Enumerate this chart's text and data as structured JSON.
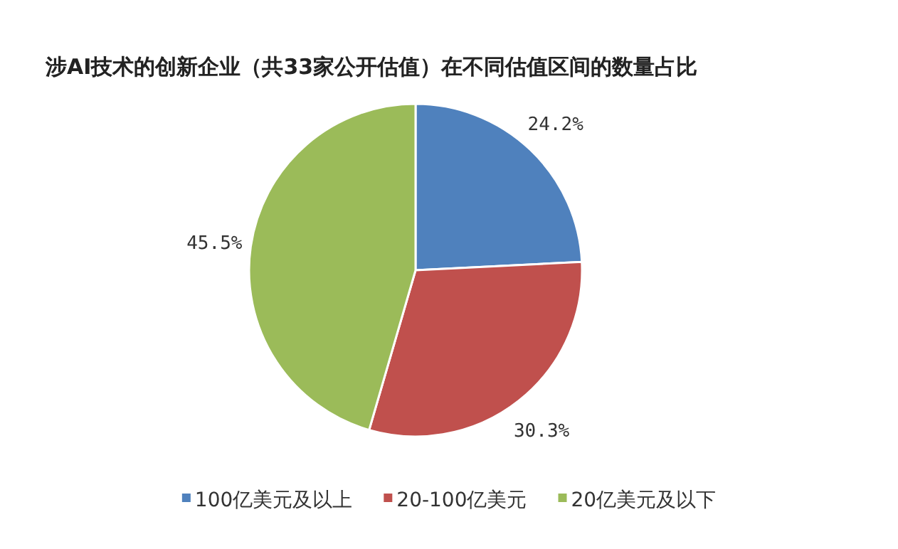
{
  "chart_data": {
    "type": "pie",
    "title": "涉AI技术的创新企业（共33家公开估值）在不同估值区间的数量占比",
    "categories": [
      "100亿美元及以上",
      "20-100亿美元",
      "20亿美元及以下"
    ],
    "values": [
      24.2,
      30.3,
      45.5
    ],
    "colors": [
      "#4f81bd",
      "#c0504d",
      "#9bbb59"
    ],
    "value_labels": [
      "24.2%",
      "30.3%",
      "45.5%"
    ],
    "legend": "bottom"
  }
}
